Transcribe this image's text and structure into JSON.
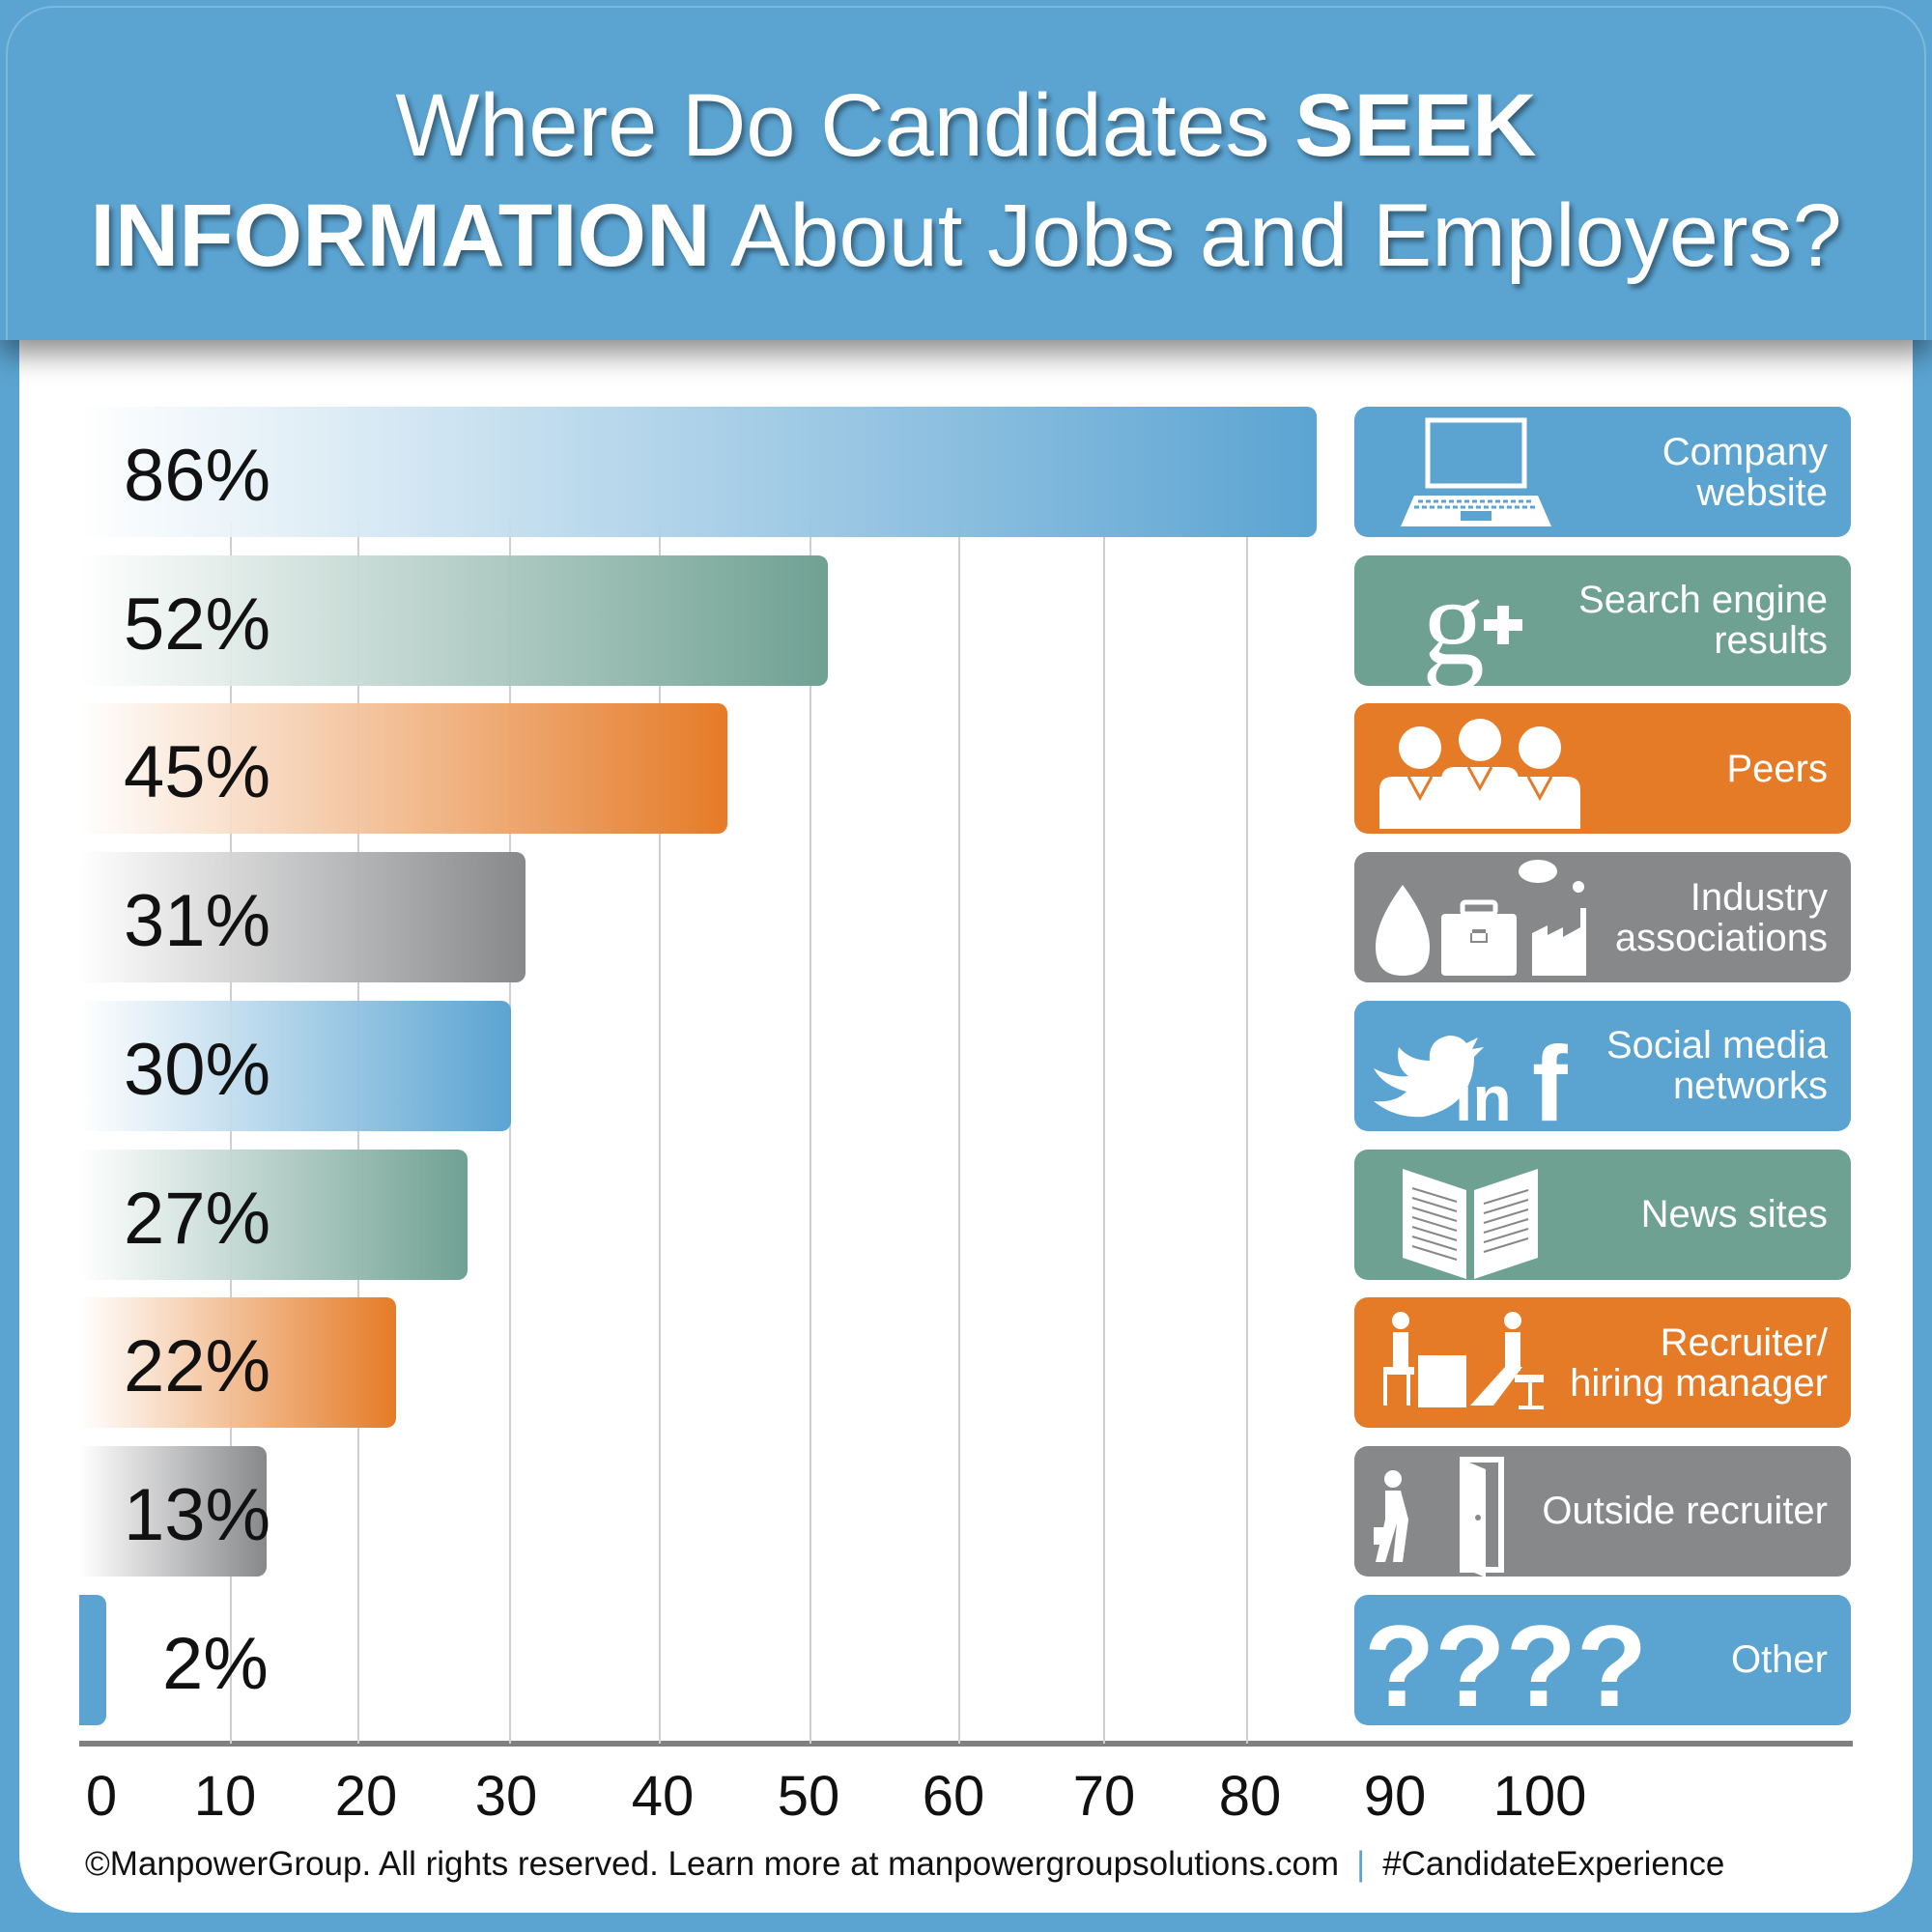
{
  "title": {
    "part1": "Where Do Candidates ",
    "bold1": "SEEK",
    "bold2": "INFORMATION",
    "part2": " About Jobs and Employers?"
  },
  "colors": {
    "blue": "#5ba4d2",
    "teal": "#6fa193",
    "orange": "#e57b27",
    "gray": "#87888a"
  },
  "chart_data": {
    "type": "bar",
    "orientation": "horizontal",
    "title": "Where Do Candidates SEEK INFORMATION About Jobs and Employers?",
    "categories": [
      [
        "Company",
        "website"
      ],
      [
        "Search engine",
        "results"
      ],
      [
        "Peers"
      ],
      [
        "Industry",
        "associations"
      ],
      [
        "Social media",
        "networks"
      ],
      [
        "News sites"
      ],
      [
        "Recruiter/",
        "hiring manager"
      ],
      [
        "Outside recruiter"
      ],
      [
        "Other"
      ]
    ],
    "values": [
      86,
      52,
      45,
      31,
      30,
      27,
      22,
      13,
      2
    ],
    "labels": [
      "86%",
      "52%",
      "45%",
      "31%",
      "30%",
      "27%",
      "22%",
      "13%",
      "2%"
    ],
    "bar_colors": [
      "blue",
      "teal",
      "orange",
      "gray",
      "blue",
      "teal",
      "orange",
      "gray",
      "blue"
    ],
    "icons": [
      "laptop-icon",
      "google-plus-icon",
      "peers-icon",
      "industry-icon",
      "social-media-icon",
      "newspaper-icon",
      "interview-icon",
      "door-walker-icon",
      "question-marks-icon"
    ],
    "icon_text": {
      "other": "????"
    },
    "xlim": [
      0,
      100
    ],
    "xticks": [
      "0",
      "10",
      "20",
      "30",
      "40",
      "50",
      "60",
      "70",
      "80",
      "90",
      "100"
    ],
    "grid": true
  },
  "footer": {
    "copyright": "©ManpowerGroup. All rights reserved. Learn more at ",
    "site": "manpowergroupsolutions.com",
    "separator": "|",
    "hashtag": "#CandidateExperience"
  }
}
